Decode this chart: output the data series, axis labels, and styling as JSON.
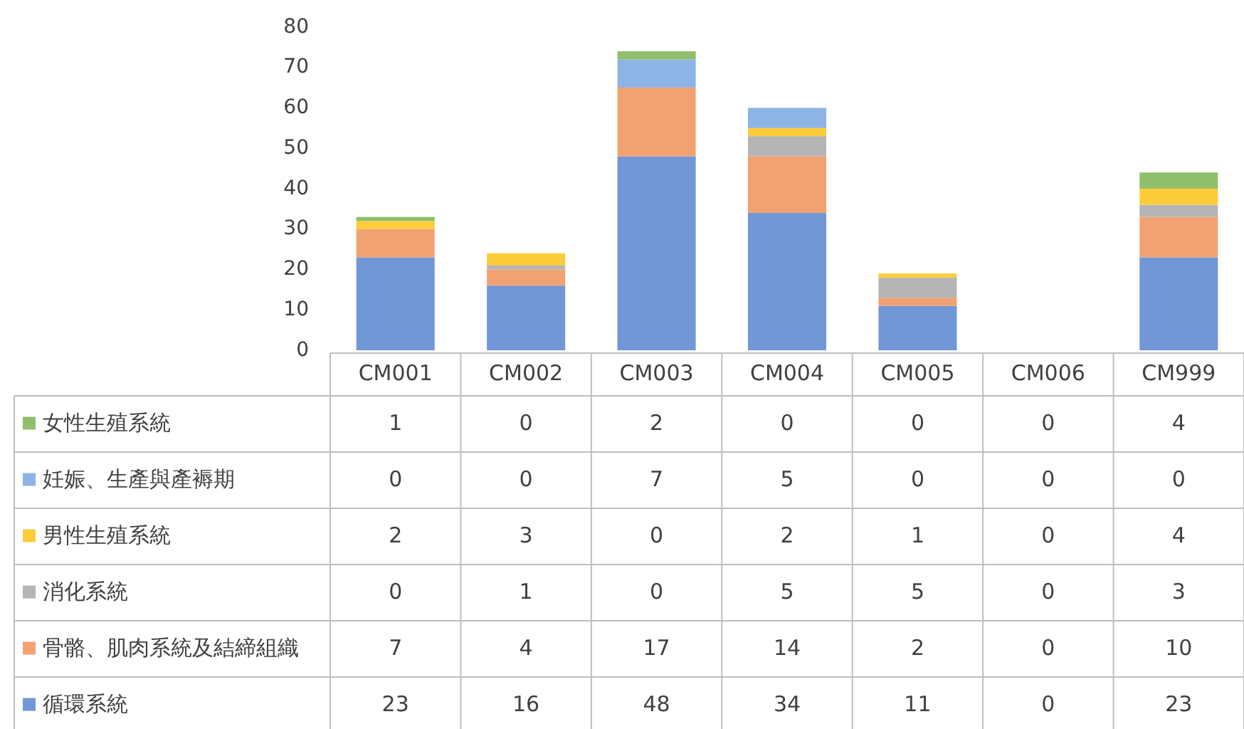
{
  "chart_data": {
    "type": "bar",
    "stacked": true,
    "data_labels": true,
    "legend": "bottom left",
    "categories": [
      "CM001",
      "CM002",
      "CM003",
      "CM004",
      "CM005",
      "CM006",
      "CM999"
    ],
    "ylim": [
      0,
      80
    ],
    "yticks": [
      0,
      10,
      20,
      30,
      40,
      50,
      60,
      70,
      80
    ],
    "series": [
      {
        "name": "循環系統",
        "color": "#7297d6",
        "values": [
          23,
          16,
          48,
          34,
          11,
          0,
          23
        ]
      },
      {
        "name": "骨骼、肌肉系統及結締組織",
        "color": "#f2a272",
        "values": [
          7,
          4,
          17,
          14,
          2,
          0,
          10
        ]
      },
      {
        "name": "消化系統",
        "color": "#b5b5b5",
        "values": [
          0,
          1,
          0,
          5,
          5,
          0,
          3
        ]
      },
      {
        "name": "男性生殖系統",
        "color": "#fdcc3a",
        "values": [
          2,
          3,
          0,
          2,
          1,
          0,
          4
        ]
      },
      {
        "name": "妊娠、生產與產褥期",
        "color": "#8db4e4",
        "values": [
          0,
          0,
          7,
          5,
          0,
          0,
          0
        ]
      },
      {
        "name": "女性生殖系統",
        "color": "#8fbf6a",
        "values": [
          1,
          0,
          2,
          0,
          0,
          0,
          4
        ]
      }
    ]
  }
}
